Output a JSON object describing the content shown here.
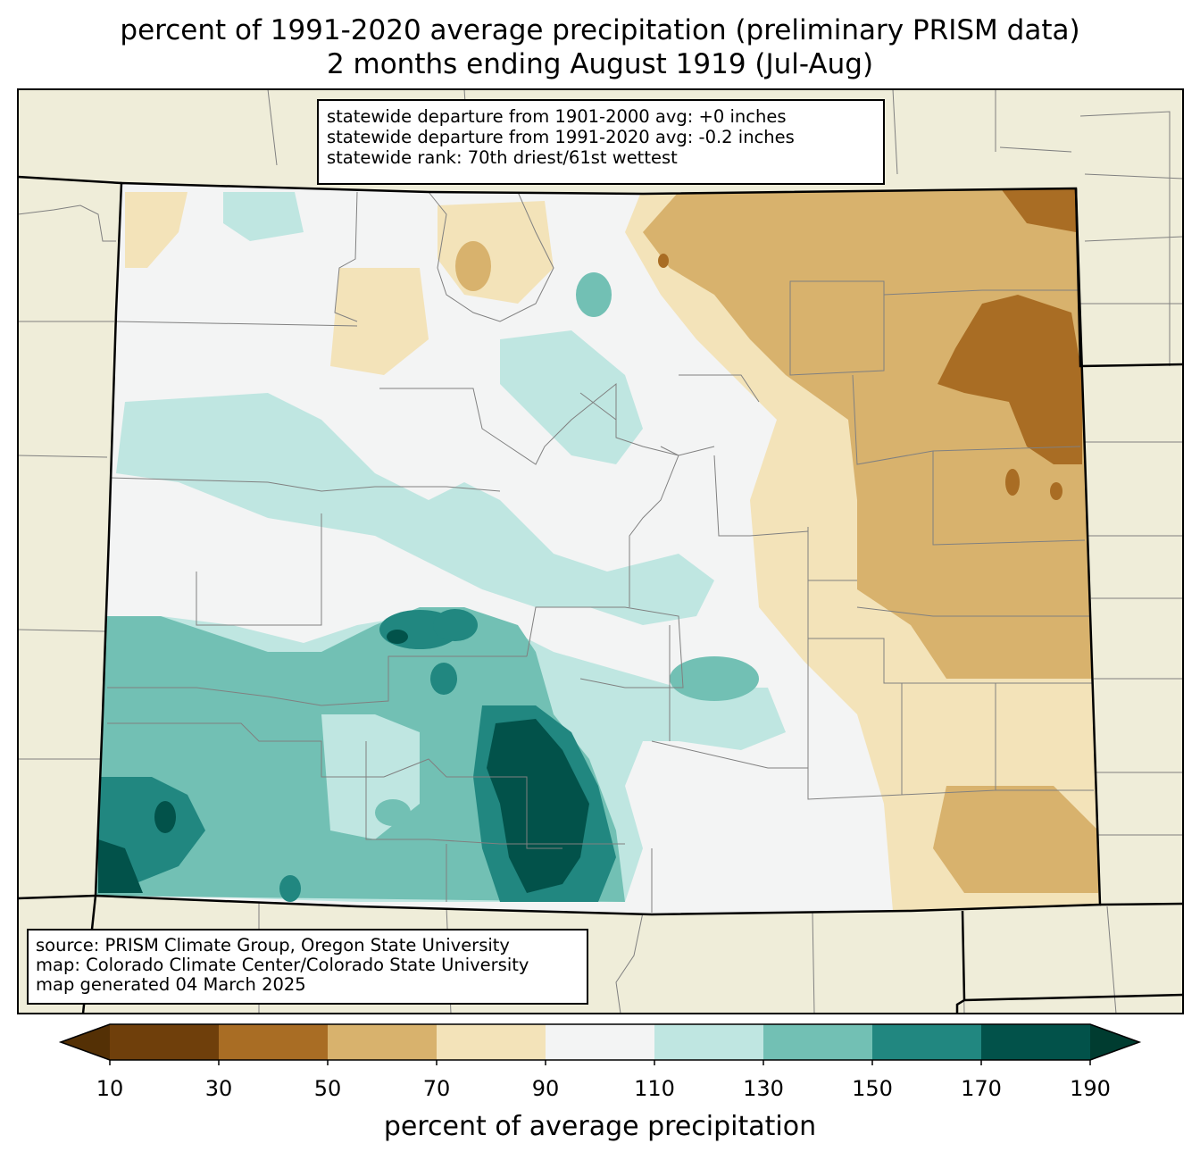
{
  "title": {
    "line1": "percent of 1991-2020 average precipitation (preliminary PRISM data)",
    "line2": "2 months ending August 1919 (Jul-Aug)"
  },
  "stats": {
    "line1": "statewide departure from 1901-2000 avg: +0 inches",
    "line2": "statewide departure from 1991-2020 avg: -0.2 inches",
    "line3": "statewide rank: 70th driest/61st wettest"
  },
  "source": {
    "line1": "source: PRISM Climate Group, Oregon State University",
    "line2": "map: Colorado Climate Center/Colorado State University",
    "line3": "map generated 04 March 2025"
  },
  "colorbar": {
    "label": "percent of average precipitation",
    "ticks": [
      "10",
      "30",
      "50",
      "70",
      "90",
      "110",
      "130",
      "150",
      "170",
      "190"
    ],
    "colors": [
      "#6f3f0b",
      "#a96d24",
      "#d8b26d",
      "#f3e3b9",
      "#f3f4f4",
      "#bfe6e1",
      "#72c0b4",
      "#218780",
      "#02524a"
    ],
    "under_color": "#543005",
    "over_color": "#003c30"
  },
  "colors": {
    "background": "#efedd9",
    "state_outline": "#000000",
    "county_lines": "#808080"
  }
}
